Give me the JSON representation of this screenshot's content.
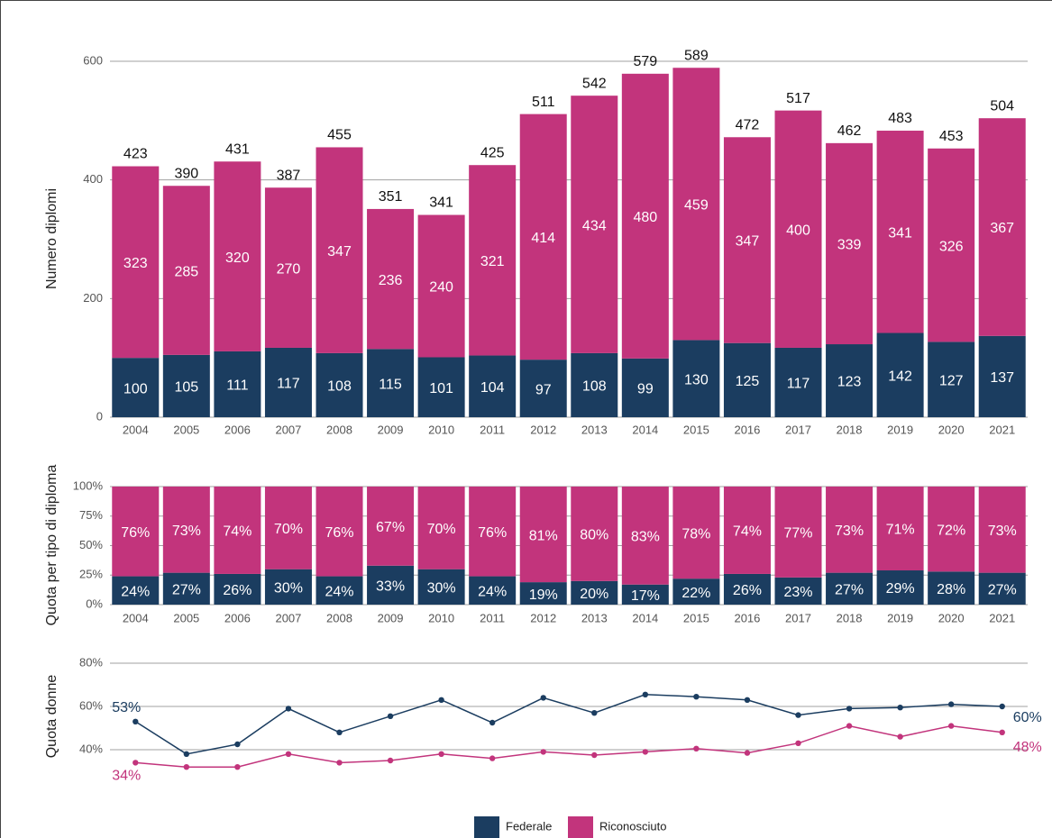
{
  "chart_data": [
    {
      "type": "bar",
      "stacked": true,
      "y_label": "Numero diplomi",
      "categories": [
        "2004",
        "2005",
        "2006",
        "2007",
        "2008",
        "2009",
        "2010",
        "2011",
        "2012",
        "2013",
        "2014",
        "2015",
        "2016",
        "2017",
        "2018",
        "2019",
        "2020",
        "2021"
      ],
      "series": [
        {
          "name": "Federale",
          "color": "#1b3d60",
          "values": [
            100,
            105,
            111,
            117,
            108,
            115,
            101,
            104,
            97,
            108,
            99,
            130,
            125,
            117,
            123,
            142,
            127,
            137
          ]
        },
        {
          "name": "Riconosciuto",
          "color": "#c2347c",
          "values": [
            323,
            285,
            320,
            270,
            347,
            236,
            240,
            321,
            414,
            434,
            480,
            459,
            347,
            400,
            339,
            341,
            326,
            367
          ]
        }
      ],
      "totals": [
        423,
        390,
        431,
        387,
        455,
        351,
        341,
        425,
        511,
        542,
        579,
        589,
        472,
        517,
        462,
        483,
        453,
        504
      ],
      "ylim": [
        0,
        600
      ],
      "yticks": [
        0,
        200,
        400,
        600
      ],
      "grid": true
    },
    {
      "type": "bar",
      "stacked": true,
      "y_label": "Quota per tipo di diploma",
      "categories": [
        "2004",
        "2005",
        "2006",
        "2007",
        "2008",
        "2009",
        "2010",
        "2011",
        "2012",
        "2013",
        "2014",
        "2015",
        "2016",
        "2017",
        "2018",
        "2019",
        "2020",
        "2021"
      ],
      "series": [
        {
          "name": "Federale",
          "color": "#1b3d60",
          "values": [
            24,
            27,
            26,
            30,
            24,
            33,
            30,
            24,
            19,
            20,
            17,
            22,
            26,
            23,
            27,
            29,
            28,
            27
          ],
          "value_labels": [
            "24%",
            "27%",
            "26%",
            "30%",
            "24%",
            "33%",
            "30%",
            "24%",
            "19%",
            "20%",
            "17%",
            "22%",
            "26%",
            "23%",
            "27%",
            "29%",
            "28%",
            "27%"
          ]
        },
        {
          "name": "Riconosciuto",
          "color": "#c2347c",
          "values": [
            76,
            73,
            74,
            70,
            76,
            67,
            70,
            76,
            81,
            80,
            83,
            78,
            74,
            77,
            73,
            71,
            72,
            73
          ],
          "value_labels": [
            "76%",
            "73%",
            "74%",
            "70%",
            "76%",
            "67%",
            "70%",
            "76%",
            "81%",
            "80%",
            "83%",
            "78%",
            "74%",
            "77%",
            "73%",
            "71%",
            "72%",
            "73%"
          ]
        }
      ],
      "ylim": [
        0,
        100
      ],
      "yticks": [
        {
          "value": 0,
          "label": "0%"
        },
        {
          "value": 25,
          "label": "25%"
        },
        {
          "value": 50,
          "label": "50%"
        },
        {
          "value": 75,
          "label": "75%"
        },
        {
          "value": 100,
          "label": "100%"
        }
      ],
      "grid": true
    },
    {
      "type": "line",
      "y_label": "Quota donne",
      "categories": [
        "2004",
        "2005",
        "2006",
        "2007",
        "2008",
        "2009",
        "2010",
        "2011",
        "2012",
        "2013",
        "2014",
        "2015",
        "2016",
        "2017",
        "2018",
        "2019",
        "2020",
        "2021"
      ],
      "series": [
        {
          "name": "Federale",
          "color": "#1b3d60",
          "values": [
            53,
            38,
            42.5,
            59,
            48,
            55.5,
            63,
            52.5,
            64,
            57,
            65.5,
            64.5,
            63,
            56,
            59,
            59.5,
            61,
            60
          ],
          "value_labels": [
            "53%",
            null,
            null,
            null,
            null,
            null,
            null,
            null,
            null,
            null,
            null,
            null,
            null,
            null,
            null,
            null,
            null,
            "60%"
          ]
        },
        {
          "name": "Riconosciuto",
          "color": "#c2347c",
          "values": [
            34,
            32,
            32,
            38,
            34,
            35,
            38,
            36,
            39,
            37.5,
            39,
            40.5,
            38.5,
            43,
            51,
            46,
            51,
            48
          ],
          "value_labels": [
            "34%",
            null,
            null,
            null,
            null,
            null,
            null,
            null,
            null,
            null,
            null,
            null,
            null,
            null,
            null,
            null,
            null,
            "48%"
          ]
        }
      ],
      "ylim": [
        30,
        80
      ],
      "yticks": [
        {
          "value": 40,
          "label": "40%"
        },
        {
          "value": 60,
          "label": "60%"
        },
        {
          "value": 80,
          "label": "80%"
        }
      ],
      "grid": true
    }
  ]
}
